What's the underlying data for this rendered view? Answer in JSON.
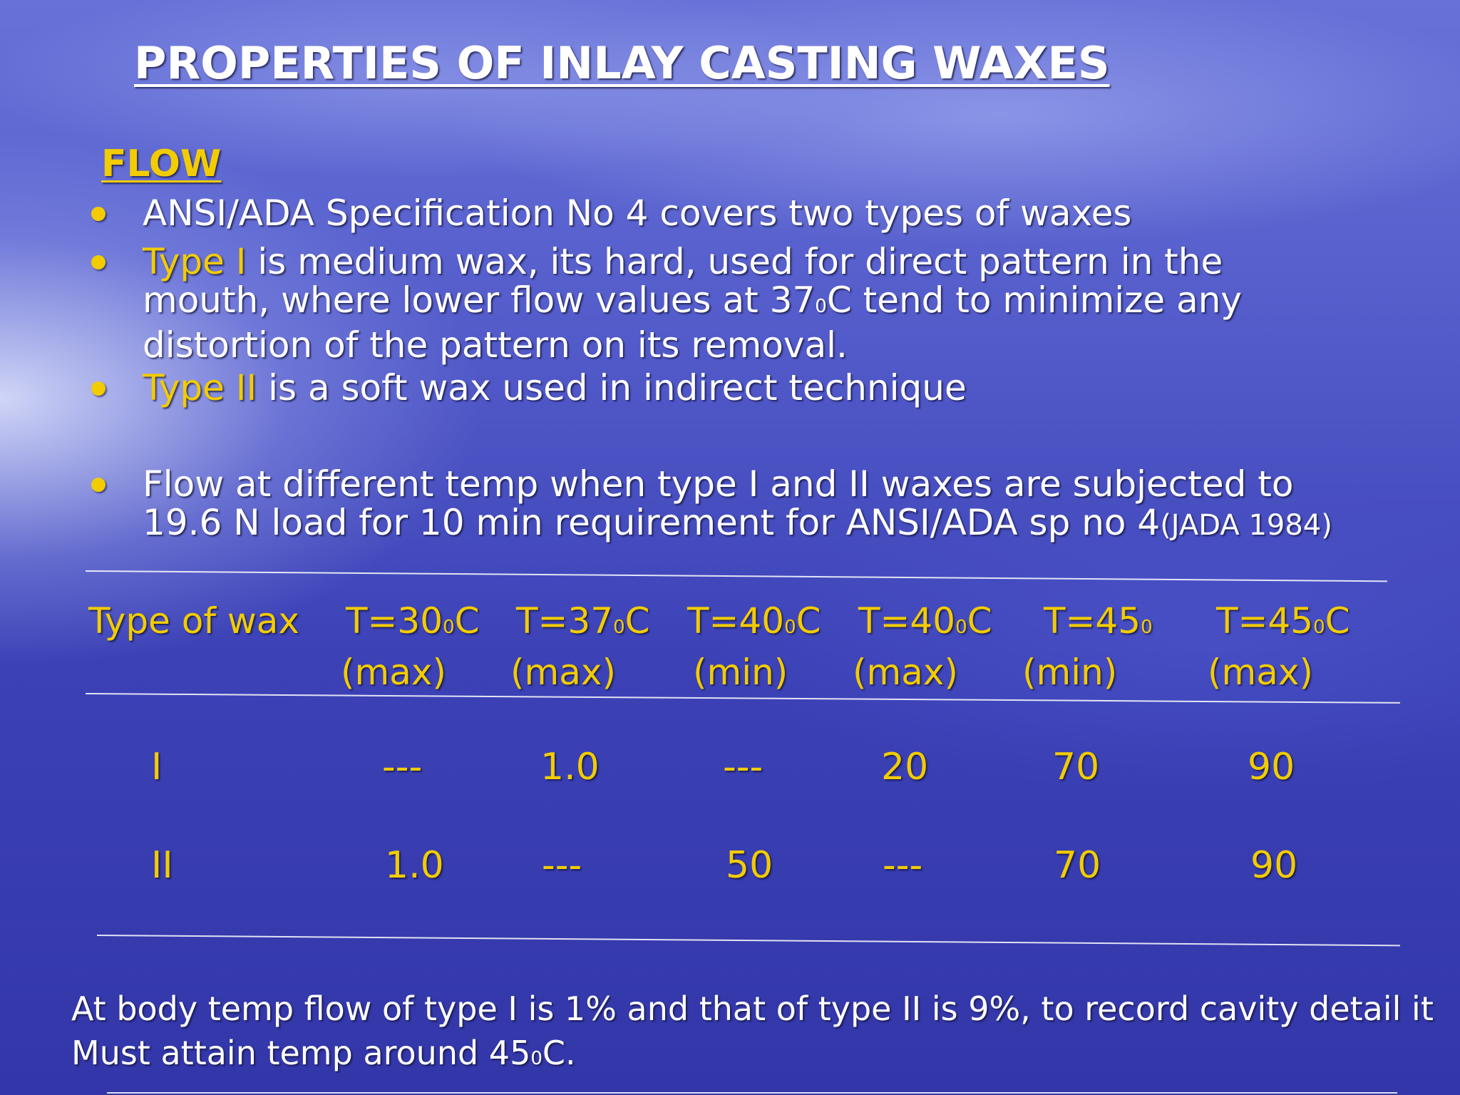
{
  "title": "PROPERTIES OF INLAY CASTING WAXES",
  "section": "FLOW",
  "bullets": {
    "b1": "ANSI/ADA Specification No 4 covers two types of waxes",
    "b2_hl": "Type I",
    "b2_l1": " is medium wax, its hard, used for direct pattern in the",
    "b2_l2a": "mouth, where lower flow values at 37",
    "b2_l2sup": "0",
    "b2_l2b": "C tend to minimize any",
    "b2_l3": "distortion of the pattern on its removal.",
    "b3_hl": "Type II",
    "b3_rest": " is a soft wax used in indirect technique",
    "b4_l1": "Flow at different temp when type I and II waxes are subjected to",
    "b4_l2": "19.6 N load for 10 min requirement for ANSI/ADA sp no 4",
    "b4_ref": "(JADA 1984)"
  },
  "table": {
    "header": {
      "type": "Type of wax",
      "c1a": "T=30",
      "c1b": "C",
      "c1c": "(max)",
      "c2a": "T=37",
      "c2b": "C",
      "c2c": "(max)",
      "c3a": "T=40",
      "c3b": "C",
      "c3c": "(min)",
      "c4a": "T=40",
      "c4b": "C",
      "c4c": "(max)",
      "c5a": "T=45",
      "c5c": "(min)",
      "c6a": "T=45",
      "c6b": "C",
      "c6c": "(max)",
      "deg": "0"
    },
    "rows": [
      {
        "type": "I",
        "v1": "---",
        "v2": "1.0",
        "v3": "---",
        "v4": "20",
        "v5": "70",
        "v6": "90"
      },
      {
        "type": "II",
        "v1": "1.0",
        "v2": "---",
        "v3": "50",
        "v4": "---",
        "v5": "70",
        "v6": "90"
      }
    ]
  },
  "footer": {
    "l1": "At body temp flow of type I is 1% and that of type II is 9%, to record cavity detail it",
    "l2a": "Must attain temp around 45",
    "l2sup": "0",
    "l2b": "C."
  },
  "colors": {
    "accent": "#f2cc00",
    "text": "#ffffff"
  }
}
